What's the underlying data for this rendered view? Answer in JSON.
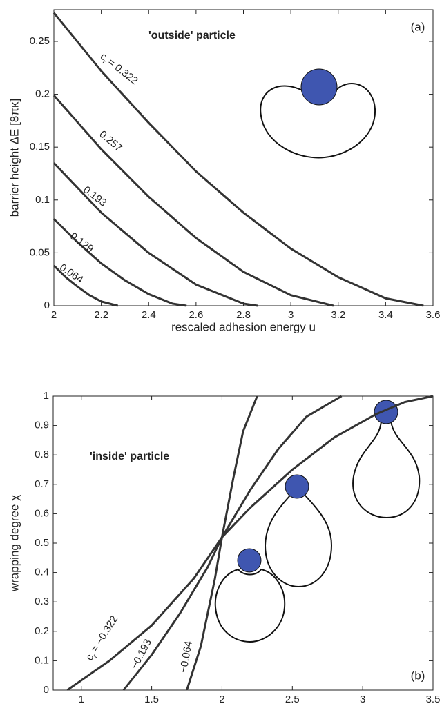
{
  "chart_data": [
    {
      "type": "line",
      "panel": "(a)",
      "annotation": "'outside' particle",
      "xlabel": "rescaled adhesion energy u",
      "ylabel": "barrier height ΔE  [8πκ]",
      "label_symbol": "c",
      "label_subscript": "r",
      "xlim": [
        2,
        3.6
      ],
      "xticks": [
        2,
        2.2,
        2.4,
        2.6,
        2.8,
        3,
        3.2,
        3.4,
        3.6
      ],
      "ylim": [
        0,
        0.28
      ],
      "yticks": [
        0,
        0.05,
        0.1,
        0.15,
        0.2,
        0.25
      ],
      "series": [
        {
          "name": "= 0.322",
          "color": "#333333",
          "x": [
            2,
            2.2,
            2.4,
            2.6,
            2.8,
            3.0,
            3.2,
            3.4,
            3.56
          ],
          "values": [
            0.277,
            0.222,
            0.173,
            0.127,
            0.088,
            0.054,
            0.027,
            0.007,
            0
          ]
        },
        {
          "name": "0.257",
          "color": "#333333",
          "x": [
            2,
            2.2,
            2.4,
            2.6,
            2.8,
            3.0,
            3.18
          ],
          "values": [
            0.199,
            0.148,
            0.103,
            0.064,
            0.032,
            0.01,
            0
          ]
        },
        {
          "name": "0.193",
          "color": "#333333",
          "x": [
            2,
            2.2,
            2.4,
            2.6,
            2.8,
            2.86
          ],
          "values": [
            0.135,
            0.088,
            0.05,
            0.02,
            0.002,
            0
          ]
        },
        {
          "name": "0.129",
          "color": "#333333",
          "x": [
            2,
            2.1,
            2.2,
            2.3,
            2.4,
            2.5,
            2.56
          ],
          "values": [
            0.082,
            0.06,
            0.04,
            0.024,
            0.011,
            0.002,
            0
          ]
        },
        {
          "name": "0.064",
          "color": "#333333",
          "x": [
            2,
            2.05,
            2.1,
            2.15,
            2.2,
            2.27
          ],
          "values": [
            0.038,
            0.027,
            0.018,
            0.01,
            0.004,
            0
          ]
        }
      ]
    },
    {
      "type": "line",
      "panel": "(b)",
      "annotation": "'inside' particle",
      "xlabel": "rescaled adhesion energy u",
      "ylabel": "wrapping degree χ",
      "label_symbol": "c",
      "label_subscript": "r",
      "xlim": [
        0.8,
        3.5
      ],
      "xticks": [
        1,
        1.5,
        2,
        2.5,
        3,
        3.5
      ],
      "ylim": [
        0,
        1
      ],
      "yticks": [
        0,
        0.1,
        0.2,
        0.3,
        0.4,
        0.5,
        0.6,
        0.7,
        0.8,
        0.9,
        1
      ],
      "series": [
        {
          "name": "= −0.322",
          "color": "#333333",
          "x": [
            0.9,
            1.2,
            1.5,
            1.8,
            2.0,
            2.2,
            2.5,
            2.8,
            3.1,
            3.3,
            3.5
          ],
          "values": [
            0,
            0.1,
            0.22,
            0.38,
            0.52,
            0.62,
            0.75,
            0.86,
            0.94,
            0.98,
            1
          ]
        },
        {
          "name": "−0.193",
          "color": "#333333",
          "x": [
            1.3,
            1.5,
            1.7,
            1.9,
            2.0,
            2.2,
            2.4,
            2.6,
            2.85
          ],
          "values": [
            0,
            0.12,
            0.26,
            0.42,
            0.52,
            0.68,
            0.82,
            0.93,
            1
          ]
        },
        {
          "name": "−0.064",
          "color": "#333333",
          "x": [
            1.75,
            1.85,
            1.95,
            2.0,
            2.08,
            2.15,
            2.25
          ],
          "values": [
            0,
            0.15,
            0.38,
            0.52,
            0.72,
            0.88,
            1
          ]
        }
      ]
    }
  ]
}
